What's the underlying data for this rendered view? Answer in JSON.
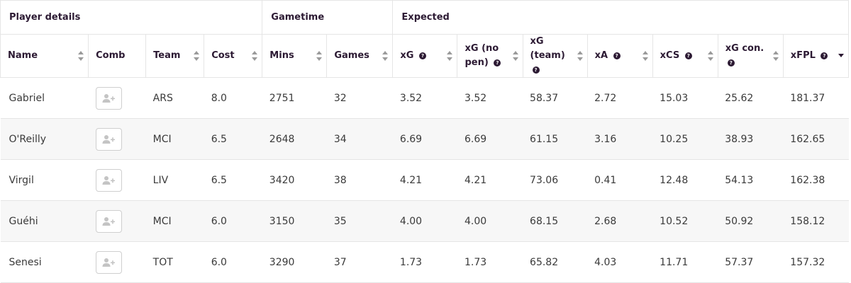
{
  "groups": [
    {
      "label": "Player details"
    },
    {
      "label": "Gametime"
    },
    {
      "label": "Expected"
    }
  ],
  "columns": [
    {
      "label": "Name",
      "info": false,
      "sortable": true
    },
    {
      "label": "Comb",
      "info": false,
      "sortable": false
    },
    {
      "label": "Team",
      "info": false,
      "sortable": true
    },
    {
      "label": "Cost",
      "info": false,
      "sortable": true
    },
    {
      "label": "Mins",
      "info": false,
      "sortable": true
    },
    {
      "label": "Games",
      "info": false,
      "sortable": true
    },
    {
      "label": "xG",
      "info": true,
      "sortable": true
    },
    {
      "label": "xG (no pen)",
      "info": true,
      "sortable": true
    },
    {
      "label": "xG (team)",
      "info": true,
      "sortable": true
    },
    {
      "label": "xA",
      "info": true,
      "sortable": true
    },
    {
      "label": "xCS",
      "info": true,
      "sortable": true
    },
    {
      "label": "xG con.",
      "info": true,
      "sortable": true
    },
    {
      "label": "xFPL",
      "info": true,
      "sortable": true,
      "sorted": "desc"
    }
  ],
  "info_glyph": "?",
  "rows": [
    {
      "name": "Gabriel",
      "team": "ARS",
      "cost": "8.0",
      "mins": "2751",
      "games": "32",
      "xg": "3.52",
      "xg_np": "3.52",
      "xg_team": "58.37",
      "xa": "2.72",
      "xcs": "15.03",
      "xg_con": "25.62",
      "xfpl": "181.37"
    },
    {
      "name": "O'Reilly",
      "team": "MCI",
      "cost": "6.5",
      "mins": "2648",
      "games": "34",
      "xg": "6.69",
      "xg_np": "6.69",
      "xg_team": "61.15",
      "xa": "3.16",
      "xcs": "10.25",
      "xg_con": "38.93",
      "xfpl": "162.65"
    },
    {
      "name": "Virgil",
      "team": "LIV",
      "cost": "6.5",
      "mins": "3420",
      "games": "38",
      "xg": "4.21",
      "xg_np": "4.21",
      "xg_team": "73.06",
      "xa": "0.41",
      "xcs": "12.48",
      "xg_con": "54.13",
      "xfpl": "162.38"
    },
    {
      "name": "Guéhi",
      "team": "MCI",
      "cost": "6.0",
      "mins": "3150",
      "games": "35",
      "xg": "4.00",
      "xg_np": "4.00",
      "xg_team": "68.15",
      "xa": "2.68",
      "xcs": "10.52",
      "xg_con": "50.92",
      "xfpl": "158.12"
    },
    {
      "name": "Senesi",
      "team": "TOT",
      "cost": "6.0",
      "mins": "3290",
      "games": "37",
      "xg": "1.73",
      "xg_np": "1.73",
      "xg_team": "65.82",
      "xa": "4.03",
      "xcs": "11.71",
      "xg_con": "57.37",
      "xfpl": "157.32"
    }
  ],
  "comb_icon": "add-user-icon",
  "colors": {
    "header_text": "#2c1a33",
    "row_alt": "#f7f7f7",
    "border": "#e5e5e5"
  }
}
